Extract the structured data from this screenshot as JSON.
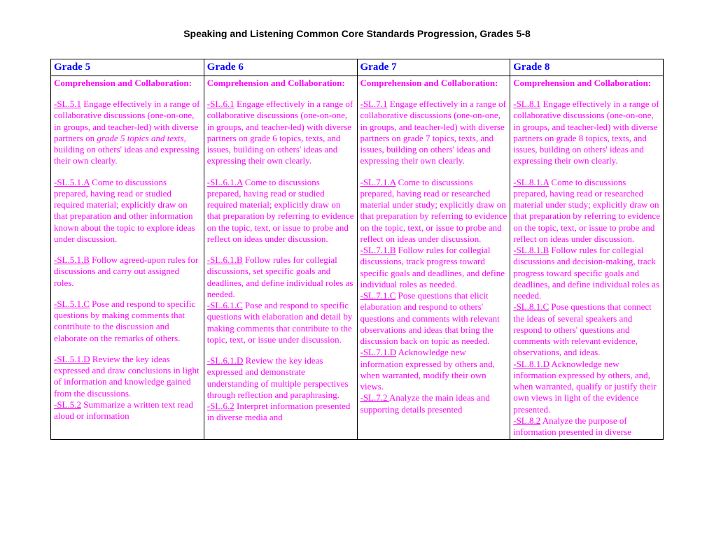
{
  "title": "Speaking and Listening Common Core Standards Progression, Grades 5-8",
  "headers": [
    "Grade 5",
    "Grade 6",
    "Grade 7",
    "Grade 8"
  ],
  "section_head": "Comprehension and Collaboration:",
  "cols": [
    {
      "p1_code": "-SL.5.1",
      "p1_a": " Engage effectively in a range of collaborative discussions (one-on-one, in groups, and teacher-led) with diverse partners on ",
      "p1_italic": "grade 5 topics and texts",
      "p1_b": ", building on others' ideas and expressing their own clearly.",
      "p2_code": "-SL.5.1.A",
      "p2_text": " Come to discussions prepared, having read or studied required material; explicitly draw on that preparation and other information known about the topic to explore ideas under discussion.",
      "p3_code": "-SL.5.1.B",
      "p3_text": " Follow agreed-upon rules for discussions and carry out assigned roles.",
      "p4_code": "-SL.5.1.C",
      "p4_text": " Pose and respond to specific questions by making comments that contribute to the discussion and elaborate on the remarks of others.",
      "p5_code": "-SL.5.1.D",
      "p5_text": " Review the key ideas expressed and draw conclusions in light of information and knowledge gained from the discussions.",
      "p6_code": "-SL.5.2",
      "p6_text": " Summarize a written text read aloud or information"
    },
    {
      "p1_code": "-SL.6.1",
      "p1_a": " Engage effectively in a range of collaborative discussions (one-on-one, in groups, and teacher-led) with diverse partners on grade 6 topics, texts, and issues, building on others' ideas and expressing their own clearly.",
      "p1_italic": "",
      "p1_b": "",
      "p2_code": "-SL.6.1.A",
      "p2_text": " Come to discussions prepared, having read or studied required material; explicitly draw on that preparation by referring to evidence on the topic, text, or issue to probe and reflect on ideas under discussion.",
      "p3_code": "-SL.6.1.B",
      "p3_text": " Follow rules for collegial discussions, set specific goals and deadlines, and define individual roles as needed.",
      "p4_code": "-SL.6.1.C",
      "p4_text": " Pose and respond to specific questions with elaboration and detail by making comments that contribute to the topic, text, or issue under discussion.",
      "p5_code": "-SL.6.1.D",
      "p5_text": " Review the key ideas expressed and demonstrate understanding of multiple perspectives through reflection and paraphrasing.",
      "p6_code": "-SL.6.2",
      "p6_text": " Interpret information presented in diverse media and"
    },
    {
      "p1_code": "-SL.7.1",
      "p1_a": " Engage effectively in a range of collaborative discussions (one-on-one, in groups, and teacher-led) with diverse partners on grade 7 topics, texts, and issues, building on others' ideas and expressing their own clearly.",
      "p1_italic": "",
      "p1_b": "",
      "p2_code": "-SL.7.1.A",
      "p2_text": " Come to discussions prepared, having read or researched material under study; explicitly draw on that preparation by referring to evidence on the topic, text, or issue to probe and reflect on ideas under discussion.",
      "p3_code": "-SL.7.1.B",
      "p3_text": " Follow rules for collegial discussions, track progress toward specific goals and deadlines, and define individual roles as needed.",
      "p4_code": "-SL.7.1.C",
      "p4_text": " Pose questions that elicit elaboration and respond to others' questions and comments with relevant observations and ideas that bring the discussion back on topic as needed.",
      "p5_code": "-SL.7.1.D",
      "p5_text": " Acknowledge new information expressed by others and, when warranted, modify their own views.",
      "p6_code": "-SL.7.2 ",
      "p6_text": "Analyze the main ideas and supporting details presented"
    },
    {
      "p1_code": "-SL.8.1",
      "p1_a": " Engage effectively in a range of collaborative discussions (one-on-one, in groups, and teacher-led) with diverse partners on grade 8 topics, texts, and issues, building on others' ideas and expressing their own clearly.",
      "p1_italic": "",
      "p1_b": "",
      "p2_code": "-SL.8.1.A",
      "p2_text": " Come to discussions prepared, having read or researched material under study; explicitly draw on that preparation by referring to evidence on the topic, text, or issue to probe and reflect on ideas under discussion.",
      "p3_code": "-SL.8.1.B",
      "p3_text": " Follow rules for collegial discussions and decision-making, track progress toward specific goals and deadlines, and define individual roles as needed.",
      "p4_code": "-SL.8.1.C",
      "p4_text": " Pose questions that connect the ideas of several speakers and respond to others' questions and comments with relevant evidence, observations, and ideas.",
      "p5_code": "-SL.8.1.D",
      "p5_text": " Acknowledge new information expressed by others, and, when warranted, qualify or justify their own views in light of the evidence presented.",
      "p6_code": "-SL.8.2",
      "p6_text": " Analyze the purpose of information presented in diverse"
    }
  ]
}
